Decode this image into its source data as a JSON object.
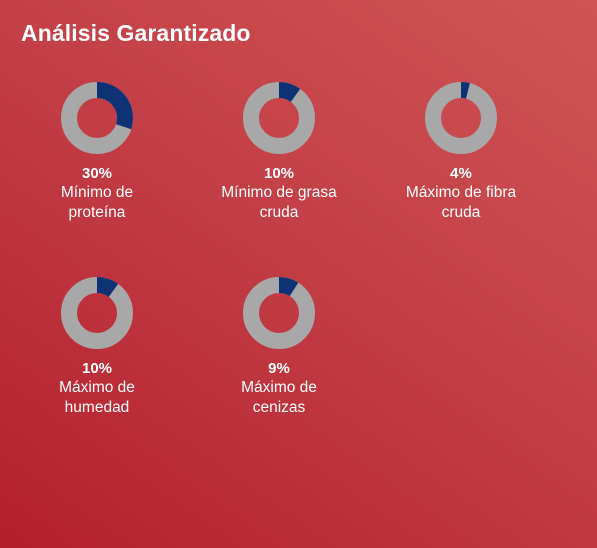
{
  "title": "Análisis Garantizado",
  "colors": {
    "filled": "#0f3275",
    "track": "#a8a8a8",
    "background_start": "#cf5555",
    "background_end": "#b41f2c"
  },
  "items": [
    {
      "percent": "30%",
      "value": 30,
      "label": "Mínimo de\nproteína"
    },
    {
      "percent": "10%",
      "value": 10,
      "label": "Mínimo de grasa\ncruda"
    },
    {
      "percent": "4%",
      "value": 4,
      "label": "Máximo de fibra\ncruda"
    },
    {
      "percent": "10%",
      "value": 10,
      "label": "Máximo de\nhumedad"
    },
    {
      "percent": "9%",
      "value": 9,
      "label": "Máximo de\ncenizas"
    }
  ]
}
